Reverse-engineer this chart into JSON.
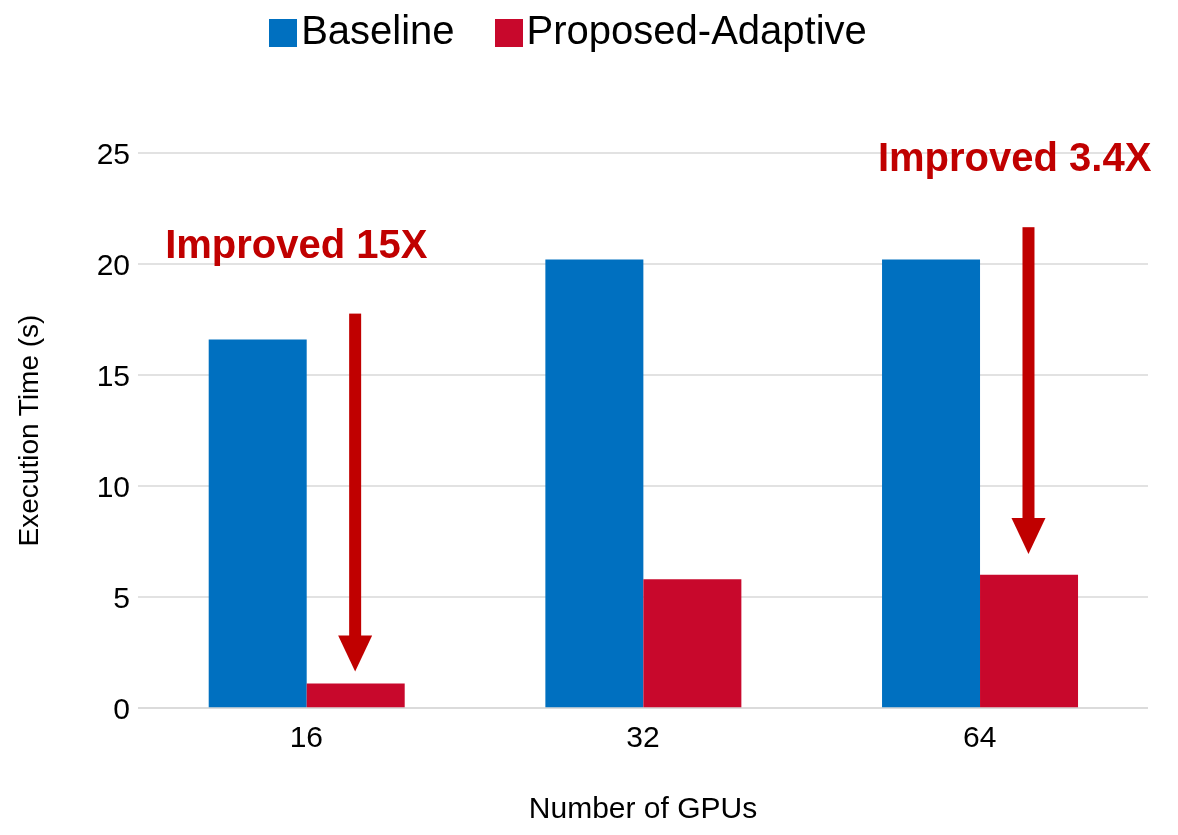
{
  "chart_data": {
    "type": "bar",
    "xlabel": "Number of GPUs",
    "ylabel": "Execution Time (s)",
    "categories": [
      "16",
      "32",
      "64"
    ],
    "series": [
      {
        "name": "Baseline",
        "color": "#0070c0",
        "values": [
          16.6,
          20.2,
          20.2
        ]
      },
      {
        "name": "Proposed-Adaptive",
        "color": "#c8082c",
        "values": [
          1.1,
          5.8,
          6.0
        ]
      }
    ],
    "ylim": [
      0,
      25
    ],
    "yticks": [
      0,
      5,
      10,
      15,
      20,
      25
    ],
    "grid": "y",
    "legend": "top",
    "annotations": [
      "Improved 15X",
      "Improved 3.4X"
    ]
  }
}
